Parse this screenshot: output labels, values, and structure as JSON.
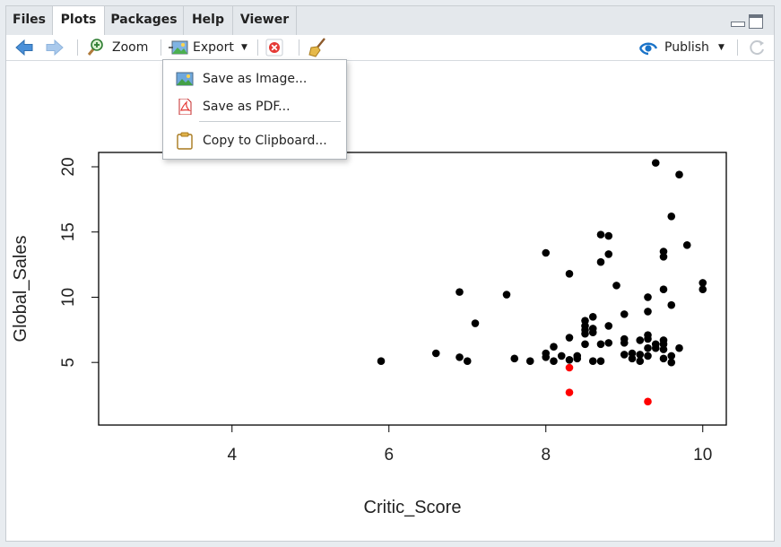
{
  "tabs": [
    {
      "label": "Files",
      "active": false
    },
    {
      "label": "Plots",
      "active": true
    },
    {
      "label": "Packages",
      "active": false
    },
    {
      "label": "Help",
      "active": false
    },
    {
      "label": "Viewer",
      "active": false
    }
  ],
  "toolbar": {
    "back_icon": "arrow-left-icon",
    "forward_icon": "arrow-right-icon",
    "zoom_label": "Zoom",
    "export_label": "Export",
    "remove_icon": "remove-plot-icon",
    "clear_icon": "broom-icon",
    "publish_label": "Publish",
    "refresh_icon": "refresh-icon"
  },
  "export_menu": {
    "items": [
      {
        "label": "Save as Image...",
        "icon": "image-icon"
      },
      {
        "label": "Save as PDF...",
        "icon": "pdf-icon"
      },
      {
        "label": "Copy to Clipboard...",
        "icon": "clipboard-icon"
      }
    ]
  },
  "colors": {
    "accent": "#1a73c8",
    "highlight": "#ff0000",
    "points": "#000000"
  },
  "chart_data": {
    "type": "scatter",
    "xlabel": "Critic_Score",
    "ylabel": "Global_Sales",
    "xlim": [
      2.3,
      10.3
    ],
    "ylim": [
      0.2,
      21.1
    ],
    "xticks": [
      4,
      6,
      8,
      10
    ],
    "yticks": [
      5,
      10,
      15,
      20
    ],
    "grid": false,
    "series": [
      {
        "color": "#000000",
        "points": [
          [
            5.9,
            5.1
          ],
          [
            6.6,
            5.7
          ],
          [
            6.9,
            5.4
          ],
          [
            6.9,
            10.4
          ],
          [
            7.0,
            5.1
          ],
          [
            7.1,
            8.0
          ],
          [
            7.5,
            10.2
          ],
          [
            7.6,
            5.3
          ],
          [
            7.8,
            5.1
          ],
          [
            8.0,
            13.4
          ],
          [
            8.0,
            5.7
          ],
          [
            8.0,
            5.4
          ],
          [
            8.1,
            6.2
          ],
          [
            8.1,
            5.1
          ],
          [
            8.2,
            5.5
          ],
          [
            8.3,
            11.8
          ],
          [
            8.3,
            6.9
          ],
          [
            8.3,
            5.2
          ],
          [
            8.4,
            5.3
          ],
          [
            8.4,
            5.5
          ],
          [
            8.5,
            8.2
          ],
          [
            8.5,
            7.8
          ],
          [
            8.5,
            7.5
          ],
          [
            8.5,
            7.2
          ],
          [
            8.5,
            6.4
          ],
          [
            8.6,
            8.5
          ],
          [
            8.6,
            7.6
          ],
          [
            8.6,
            7.3
          ],
          [
            8.6,
            5.1
          ],
          [
            8.7,
            14.8
          ],
          [
            8.7,
            12.7
          ],
          [
            8.7,
            6.4
          ],
          [
            8.7,
            5.1
          ],
          [
            8.8,
            14.7
          ],
          [
            8.8,
            13.3
          ],
          [
            8.8,
            7.8
          ],
          [
            8.8,
            6.5
          ],
          [
            8.9,
            10.9
          ],
          [
            9.0,
            8.7
          ],
          [
            9.0,
            6.8
          ],
          [
            9.0,
            6.5
          ],
          [
            9.0,
            5.6
          ],
          [
            9.1,
            5.7
          ],
          [
            9.1,
            5.3
          ],
          [
            9.2,
            6.7
          ],
          [
            9.2,
            5.6
          ],
          [
            9.2,
            5.1
          ],
          [
            9.3,
            10.0
          ],
          [
            9.3,
            8.9
          ],
          [
            9.3,
            7.1
          ],
          [
            9.3,
            6.8
          ],
          [
            9.3,
            6.1
          ],
          [
            9.3,
            5.5
          ],
          [
            9.4,
            20.3
          ],
          [
            9.4,
            6.4
          ],
          [
            9.4,
            6.1
          ],
          [
            9.5,
            13.5
          ],
          [
            9.5,
            13.1
          ],
          [
            9.5,
            10.6
          ],
          [
            9.5,
            6.7
          ],
          [
            9.5,
            6.4
          ],
          [
            9.5,
            6.0
          ],
          [
            9.5,
            5.3
          ],
          [
            9.6,
            16.2
          ],
          [
            9.6,
            9.4
          ],
          [
            9.6,
            5.5
          ],
          [
            9.6,
            5.0
          ],
          [
            9.7,
            19.4
          ],
          [
            9.7,
            6.1
          ],
          [
            9.8,
            14.0
          ],
          [
            10.0,
            11.1
          ],
          [
            10.0,
            10.6
          ]
        ]
      },
      {
        "color": "#ff0000",
        "points": [
          [
            8.3,
            4.6
          ],
          [
            8.3,
            2.7
          ],
          [
            9.3,
            2.0
          ]
        ]
      }
    ]
  }
}
